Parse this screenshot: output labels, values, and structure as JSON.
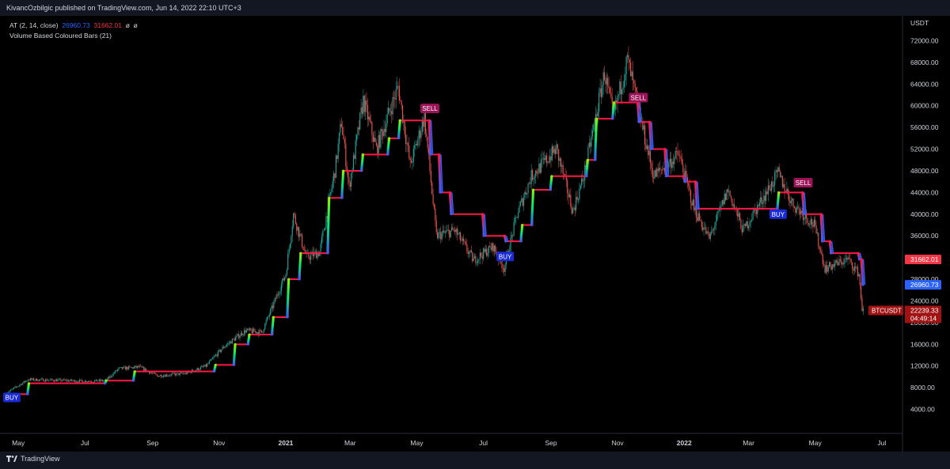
{
  "header": {
    "publisher": "KivancOzbilgic published on TradingView.com, Jun 14, 2022 22:10 UTC+3"
  },
  "legend": {
    "indicator_name": "AT (2, 14, close)",
    "value_1": "26960.73",
    "value_2": "31662.01",
    "value_3": "ø",
    "value_4": "ø",
    "second_indicator": "Volume Based Coloured Bars (21)"
  },
  "footer": {
    "brand": "TradingView"
  },
  "colors": {
    "background": "#000000",
    "up_candle": "#26a69a",
    "down_candle": "#ef5350",
    "at_red": "#ff1744",
    "at_blue": "#2962ff",
    "buy_label": "#1a2bd6",
    "sell_label": "#9c1458",
    "axis_text": "#d1d4dc"
  },
  "chart_data": {
    "type": "line",
    "title": "",
    "symbol": "BTCUSDT",
    "y_unit": "USDT",
    "ylim": [
      0,
      76000
    ],
    "y_ticks": [
      "72000.00",
      "68000.00",
      "64000.00",
      "60000.00",
      "56000.00",
      "52000.00",
      "48000.00",
      "44000.00",
      "40000.00",
      "36000.00",
      "32000.00",
      "28000.00",
      "24000.00",
      "20000.00",
      "16000.00",
      "12000.00",
      "8000.00",
      "4000.00"
    ],
    "x_ticks": [
      "May",
      "Jul",
      "Sep",
      "Nov",
      "2021",
      "Mar",
      "May",
      "Jul",
      "Sep",
      "Nov",
      "2022",
      "Mar",
      "May",
      "Jul"
    ],
    "x_range": [
      "2020-04-20",
      "2022-07-20"
    ],
    "grid": false,
    "series": [
      {
        "name": "BTCUSDT",
        "points": [
          [
            "2020-04-20",
            7000
          ],
          [
            "2020-05-10",
            9500
          ],
          [
            "2020-06-01",
            9400
          ],
          [
            "2020-07-01",
            9200
          ],
          [
            "2020-07-20",
            9300
          ],
          [
            "2020-08-01",
            11500
          ],
          [
            "2020-08-20",
            11800
          ],
          [
            "2020-09-05",
            10200
          ],
          [
            "2020-10-01",
            10600
          ],
          [
            "2020-10-20",
            12000
          ],
          [
            "2020-11-05",
            15500
          ],
          [
            "2020-11-25",
            18500
          ],
          [
            "2020-12-10",
            18200
          ],
          [
            "2020-12-20",
            23000
          ],
          [
            "2021-01-01",
            29000
          ],
          [
            "2021-01-08",
            40000
          ],
          [
            "2021-01-20",
            32000
          ],
          [
            "2021-02-01",
            33000
          ],
          [
            "2021-02-15",
            48000
          ],
          [
            "2021-02-21",
            57000
          ],
          [
            "2021-02-28",
            45000
          ],
          [
            "2021-03-13",
            61000
          ],
          [
            "2021-03-25",
            52000
          ],
          [
            "2021-04-14",
            63500
          ],
          [
            "2021-04-25",
            49000
          ],
          [
            "2021-05-08",
            58000
          ],
          [
            "2021-05-19",
            36000
          ],
          [
            "2021-06-05",
            37000
          ],
          [
            "2021-06-22",
            31500
          ],
          [
            "2021-07-10",
            34000
          ],
          [
            "2021-07-20",
            30000
          ],
          [
            "2021-08-01",
            40000
          ],
          [
            "2021-08-14",
            47000
          ],
          [
            "2021-09-06",
            52000
          ],
          [
            "2021-09-21",
            40500
          ],
          [
            "2021-10-01",
            47000
          ],
          [
            "2021-10-20",
            66000
          ],
          [
            "2021-10-28",
            58000
          ],
          [
            "2021-11-10",
            68500
          ],
          [
            "2021-11-26",
            54000
          ],
          [
            "2021-12-04",
            47000
          ],
          [
            "2021-12-27",
            51000
          ],
          [
            "2022-01-10",
            41000
          ],
          [
            "2022-01-24",
            35500
          ],
          [
            "2022-02-10",
            44500
          ],
          [
            "2022-02-24",
            37000
          ],
          [
            "2022-03-28",
            47500
          ],
          [
            "2022-04-10",
            42000
          ],
          [
            "2022-04-30",
            38000
          ],
          [
            "2022-05-10",
            30000
          ],
          [
            "2022-05-31",
            31700
          ],
          [
            "2022-06-10",
            29000
          ],
          [
            "2022-06-13",
            22500
          ],
          [
            "2022-06-14",
            22239.33
          ]
        ]
      },
      {
        "name": "AT",
        "steps": [
          [
            "2020-04-20",
            6800
          ],
          [
            "2020-05-10",
            8800
          ],
          [
            "2020-07-20",
            9300
          ],
          [
            "2020-08-15",
            11000
          ],
          [
            "2020-10-28",
            12200
          ],
          [
            "2020-11-15",
            16000
          ],
          [
            "2020-11-28",
            17800
          ],
          [
            "2020-12-20",
            21000
          ],
          [
            "2021-01-03",
            28000
          ],
          [
            "2021-01-14",
            32800
          ],
          [
            "2021-02-09",
            43000
          ],
          [
            "2021-02-22",
            48000
          ],
          [
            "2021-03-12",
            51000
          ],
          [
            "2021-04-05",
            54000
          ],
          [
            "2021-04-15",
            57300
          ],
          [
            "2021-05-13",
            51000
          ],
          [
            "2021-05-22",
            44000
          ],
          [
            "2021-06-01",
            40000
          ],
          [
            "2021-07-01",
            36000
          ],
          [
            "2021-07-21",
            35000
          ],
          [
            "2021-08-05",
            38000
          ],
          [
            "2021-08-15",
            44500
          ],
          [
            "2021-09-01",
            47000
          ],
          [
            "2021-10-04",
            50000
          ],
          [
            "2021-10-12",
            57600
          ],
          [
            "2021-10-28",
            60600
          ],
          [
            "2021-11-20",
            57000
          ],
          [
            "2021-12-01",
            52000
          ],
          [
            "2021-12-15",
            47000
          ],
          [
            "2022-01-01",
            46000
          ],
          [
            "2022-01-12",
            41000
          ],
          [
            "2022-03-28",
            44000
          ],
          [
            "2022-04-20",
            40000
          ],
          [
            "2022-05-07",
            35000
          ],
          [
            "2022-05-15",
            32800
          ],
          [
            "2022-06-10",
            31662.01
          ],
          [
            "2022-06-13",
            26960.73
          ]
        ]
      }
    ],
    "signals": [
      {
        "type": "BUY",
        "date": "2020-04-25",
        "price": 6200
      },
      {
        "type": "SELL",
        "date": "2021-05-13",
        "price": 59500
      },
      {
        "type": "BUY",
        "date": "2021-07-21",
        "price": 32200
      },
      {
        "type": "SELL",
        "date": "2021-11-20",
        "price": 61500
      },
      {
        "type": "BUY",
        "date": "2022-03-28",
        "price": 40000
      },
      {
        "type": "SELL",
        "date": "2022-04-20",
        "price": 45800
      }
    ],
    "price_labels": [
      {
        "text": "31662.01",
        "price": 31662.01,
        "color": "#f23645"
      },
      {
        "text": "26960.73",
        "price": 26960.73,
        "color": "#2962ff"
      }
    ],
    "last_price": {
      "symbol": "BTCUSDT",
      "price": "22239.33",
      "countdown": "04:49:14",
      "value": 22239.33
    }
  }
}
